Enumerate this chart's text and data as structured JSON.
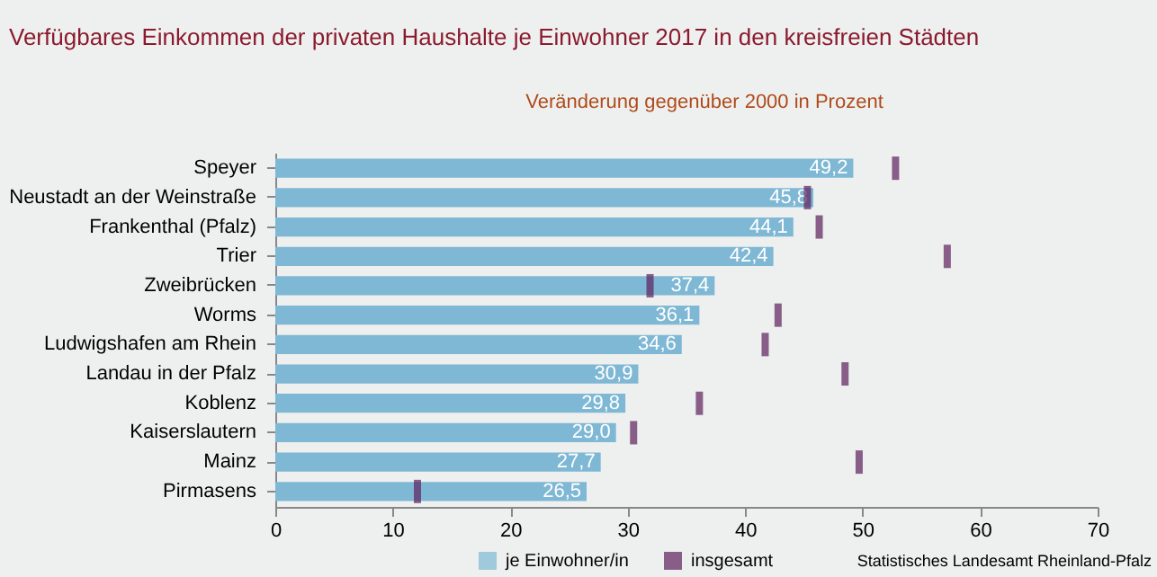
{
  "chart_data": {
    "type": "bar",
    "orientation": "horizontal",
    "title": "Verfügbares Einkommen der privaten Haushalte je Einwohner 2017 in den kreisfreien Städten",
    "subtitle": "Veränderung gegenüber 2000 in Prozent",
    "categories": [
      "Speyer",
      "Neustadt an der Weinstraße",
      "Frankenthal (Pfalz)",
      "Trier",
      "Zweibrücken",
      "Worms",
      "Ludwigshafen am Rhein",
      "Landau in der Pfalz",
      "Koblenz",
      "Kaiserslautern",
      "Mainz",
      "Pirmasens"
    ],
    "series": [
      {
        "name": "je Einwohner/in",
        "color": "#7fb8d4",
        "values": [
          49.2,
          45.8,
          44.1,
          42.4,
          37.4,
          36.1,
          34.6,
          30.9,
          29.8,
          29.0,
          27.7,
          26.5
        ],
        "value_labels": [
          "49,2",
          "45,8",
          "44,1",
          "42,4",
          "37,4",
          "36,1",
          "34,6",
          "30,9",
          "29,8",
          "29,0",
          "27,7",
          "26,5"
        ]
      },
      {
        "name": "insgesamt",
        "type": "scatter",
        "color": "#5c1f5e",
        "values": [
          52.8,
          45.3,
          46.3,
          57.2,
          31.9,
          42.8,
          41.7,
          48.5,
          36.1,
          30.5,
          49.7,
          12.1
        ]
      }
    ],
    "xlim": [
      0,
      70
    ],
    "xticks": [
      0,
      10,
      20,
      30,
      40,
      50,
      60,
      70
    ],
    "legend": "bottom",
    "annotations": [
      "Statistisches Landesamt Rheinland-Pfalz"
    ]
  }
}
